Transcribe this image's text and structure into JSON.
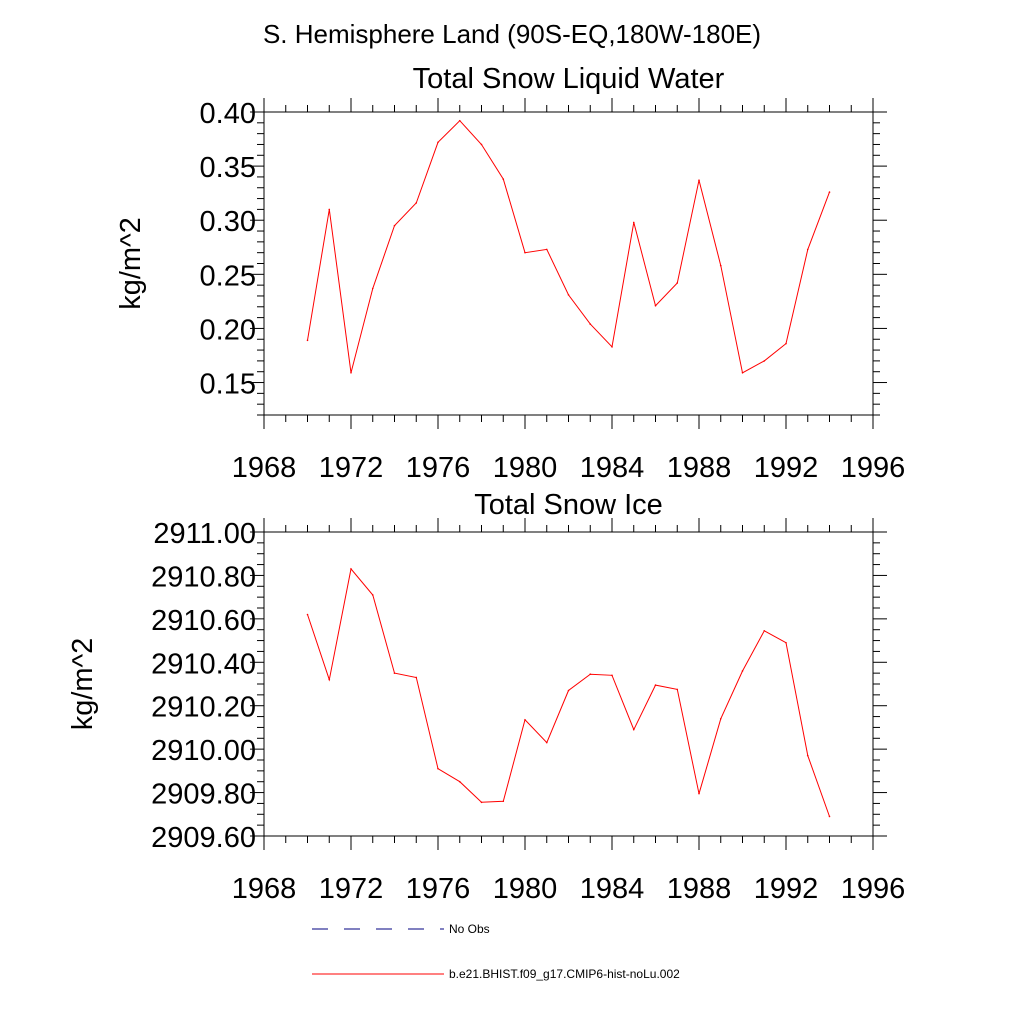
{
  "figure": {
    "title": "S. Hemisphere Land (90S-EQ,180W-180E)"
  },
  "legend": {
    "entries": [
      {
        "label": "No Obs",
        "color": "#000080",
        "style": "dashed"
      },
      {
        "label": "b.e21.BHIST.f09_g17.CMIP6-hist-noLu.002",
        "color": "#ff0000",
        "style": "solid"
      }
    ]
  },
  "chart_data": [
    {
      "type": "line",
      "title": "Total Snow Liquid Water",
      "xlabel": "",
      "ylabel": "kg/m^2",
      "xlim": [
        1968,
        1996
      ],
      "ylim": [
        0.12,
        0.4
      ],
      "xticks": [
        1968,
        1972,
        1976,
        1980,
        1984,
        1988,
        1992,
        1996
      ],
      "xtick_labels": [
        "1968",
        "1972",
        "1976",
        "1980",
        "1984",
        "1988",
        "1992",
        "1996"
      ],
      "yticks": [
        0.15,
        0.2,
        0.25,
        0.3,
        0.35,
        0.4
      ],
      "ytick_labels": [
        "0.15",
        "0.20",
        "0.25",
        "0.30",
        "0.35",
        "0.40"
      ],
      "x": [
        1970,
        1971,
        1972,
        1973,
        1974,
        1975,
        1976,
        1977,
        1978,
        1979,
        1980,
        1981,
        1982,
        1983,
        1984,
        1985,
        1986,
        1987,
        1988,
        1989,
        1990,
        1991,
        1992,
        1993,
        1994
      ],
      "series": [
        {
          "color": "#ff0000",
          "values": [
            0.189,
            0.31,
            0.159,
            0.237,
            0.295,
            0.316,
            0.372,
            0.392,
            0.37,
            0.338,
            0.27,
            0.273,
            0.231,
            0.204,
            0.183,
            0.298,
            0.221,
            0.242,
            0.337,
            0.258,
            0.159,
            0.17,
            0.186,
            0.273,
            0.326
          ]
        }
      ],
      "grid": false
    },
    {
      "type": "line",
      "title": "Total Snow Ice",
      "xlabel": "",
      "ylabel": "kg/m^2",
      "xlim": [
        1968,
        1996
      ],
      "ylim": [
        2909.6,
        2911.0
      ],
      "xticks": [
        1968,
        1972,
        1976,
        1980,
        1984,
        1988,
        1992,
        1996
      ],
      "xtick_labels": [
        "1968",
        "1972",
        "1976",
        "1980",
        "1984",
        "1988",
        "1992",
        "1996"
      ],
      "yticks": [
        2909.6,
        2909.8,
        2910.0,
        2910.2,
        2910.4,
        2910.6,
        2910.8,
        2911.0
      ],
      "ytick_labels": [
        "2909.60",
        "2909.80",
        "2910.00",
        "2910.20",
        "2910.40",
        "2910.60",
        "2910.80",
        "2911.00"
      ],
      "x": [
        1970,
        1971,
        1972,
        1973,
        1974,
        1975,
        1976,
        1977,
        1978,
        1979,
        1980,
        1981,
        1982,
        1983,
        1984,
        1985,
        1986,
        1987,
        1988,
        1989,
        1990,
        1991,
        1992,
        1993,
        1994
      ],
      "series": [
        {
          "color": "#ff0000",
          "values": [
            2910.62,
            2910.32,
            2910.83,
            2910.71,
            2910.35,
            2910.33,
            2909.91,
            2909.85,
            2909.755,
            2909.76,
            2910.135,
            2910.03,
            2910.27,
            2910.345,
            2910.34,
            2910.09,
            2910.295,
            2910.275,
            2909.795,
            2910.14,
            2910.36,
            2910.545,
            2910.49,
            2909.97,
            2909.69
          ]
        }
      ],
      "grid": false
    }
  ]
}
